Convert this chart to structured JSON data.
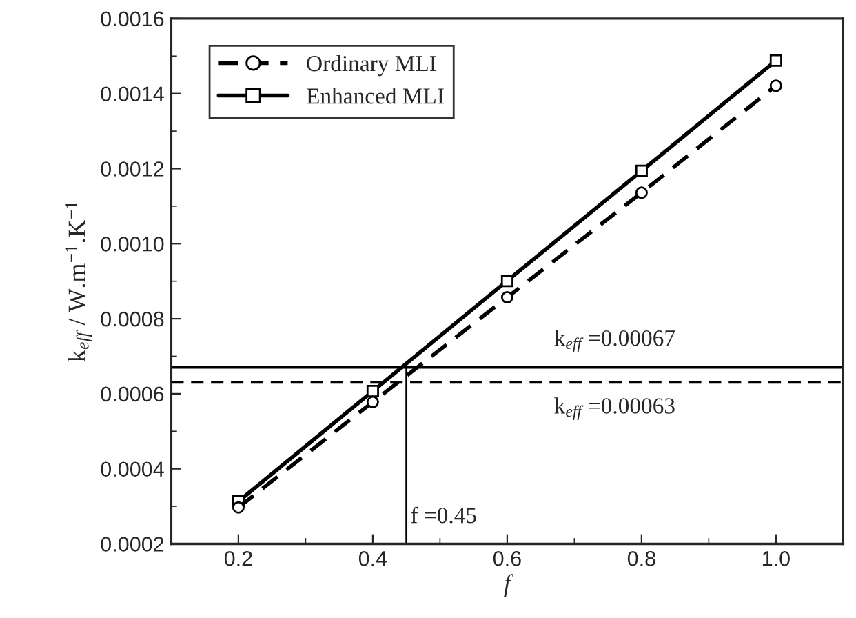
{
  "chart_data": {
    "type": "line",
    "xlabel": "f",
    "ylabel": "k$_{eff}$ / W.m$^{−1}$.K$^{−1}$",
    "x": [
      0.2,
      0.4,
      0.6,
      0.8,
      1.0
    ],
    "series": [
      {
        "name": "Ordinary MLI",
        "color": "#000000",
        "values": [
          0.000297,
          0.000578,
          0.000857,
          0.001136,
          0.001421
        ],
        "marker": "circle",
        "line_style": "dashed"
      },
      {
        "name": "Enhanced MLI",
        "color": "#000000",
        "values": [
          0.000313,
          0.000607,
          0.000901,
          0.001194,
          0.001488
        ],
        "marker": "square",
        "line_style": "solid"
      }
    ],
    "ref_lines": [
      {
        "axis": "y",
        "value": 0.00067,
        "label": "k$_{eff}$ =0.00067",
        "color": "#000000",
        "line_style": "solid"
      },
      {
        "axis": "y",
        "value": 0.00063,
        "label": "k$_{eff}$ =0.00063",
        "color": "#000000",
        "line_style": "dashed"
      },
      {
        "axis": "x",
        "value": 0.45,
        "label": "f =0.45",
        "color": "#000000",
        "line_style": "solid"
      }
    ],
    "xlim": [
      0.1,
      1.1
    ],
    "xticks": [
      {
        "value": 0.2,
        "label": "0.2"
      },
      {
        "value": 0.4,
        "label": "0.4"
      },
      {
        "value": 0.6,
        "label": "0.6"
      },
      {
        "value": 0.8,
        "label": "0.8"
      },
      {
        "value": 1.0,
        "label": "1.0"
      }
    ],
    "ylim": [
      0.0002,
      0.0016
    ],
    "yticks": [
      {
        "value": 0.0002,
        "label": "0.0002"
      },
      {
        "value": 0.0004,
        "label": "0.0004"
      },
      {
        "value": 0.0006,
        "label": "0.0006"
      },
      {
        "value": 0.0008,
        "label": "0.0008"
      },
      {
        "value": 0.001,
        "label": "0.0010"
      },
      {
        "value": 0.0012,
        "label": "0.0012"
      },
      {
        "value": 0.0014,
        "label": "0.0014"
      },
      {
        "value": 0.0016,
        "label": "0.0016"
      }
    ],
    "grid": false,
    "legend": "top left"
  }
}
